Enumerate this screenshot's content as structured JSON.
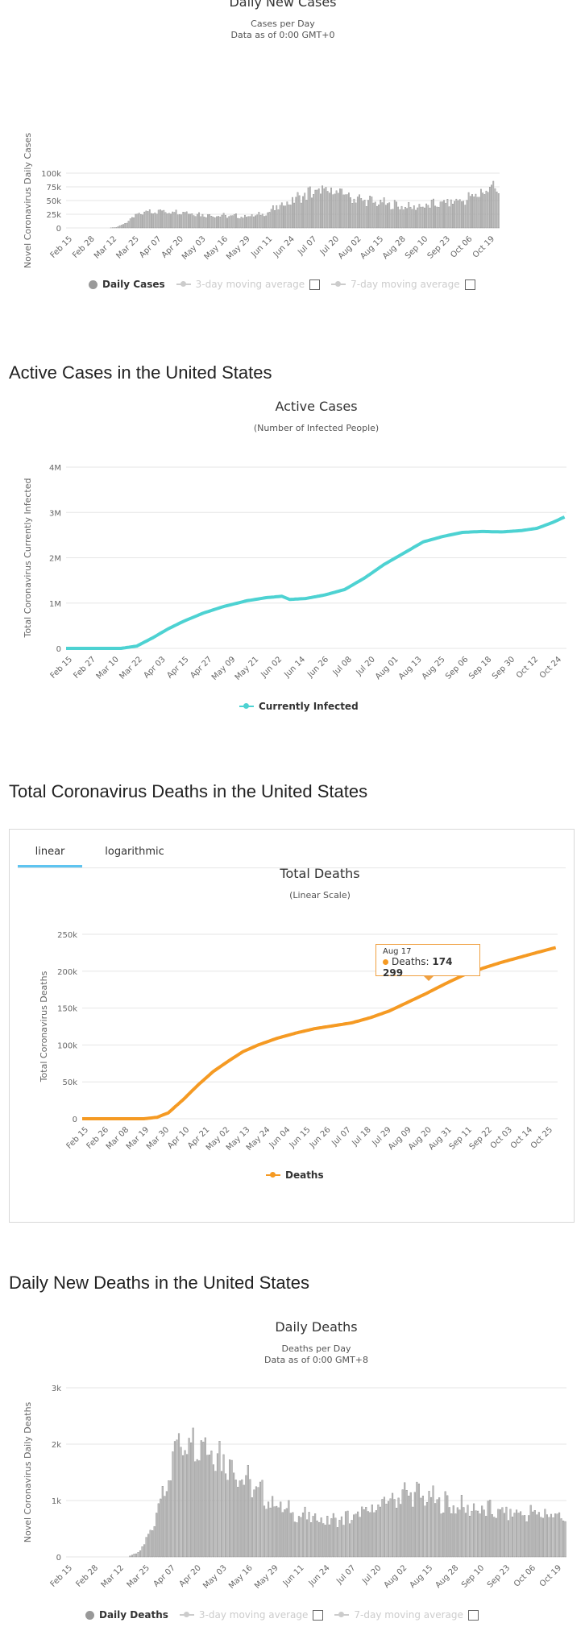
{
  "sections": {
    "active_title": "Active Cases in the United States",
    "deaths_title": "Total Coronavirus Deaths in the United States",
    "daily_deaths_title": "Daily New Deaths in the United States"
  },
  "tabs": [
    {
      "label": "linear",
      "active": true
    },
    {
      "label": "logarithmic",
      "active": false
    }
  ],
  "legends": {
    "daily_cases": {
      "primary": "Daily Cases",
      "ma3": "3-day moving average",
      "ma7": "7-day moving average"
    },
    "active": {
      "primary": "Currently Infected"
    },
    "deaths": {
      "primary": "Deaths"
    },
    "daily_deaths": {
      "primary": "Daily Deaths",
      "ma3": "3-day moving average",
      "ma7": "7-day moving average"
    }
  },
  "tooltip": {
    "date": "Aug 17",
    "label": "Deaths:",
    "value": "174 299"
  },
  "colors": {
    "bars": "#bdbdbd",
    "bar_edge": "#8a8a8a",
    "active": "#4dd2d2",
    "deaths": "#f59a23",
    "grid": "#e6e6e6",
    "legend_inactive": "#cccccc"
  },
  "chart_data": [
    {
      "id": "daily_cases",
      "type": "bar",
      "title": "Daily New Cases",
      "subtitle": "Cases per Day",
      "subtitle2": "Data as of 0:00 GMT+0",
      "ylabel": "Novel Coronavirus Daily Cases",
      "ylim": [
        0,
        100000
      ],
      "yticks": [
        0,
        25000,
        50000,
        75000,
        100000
      ],
      "ytick_labels": [
        "0",
        "25k",
        "50k",
        "75k",
        "100k"
      ],
      "xtick_labels": [
        "Feb 15",
        "Feb 28",
        "Mar 12",
        "Mar 25",
        "Apr 07",
        "Apr 20",
        "May 03",
        "May 16",
        "May 29",
        "Jun 11",
        "Jun 24",
        "Jul 07",
        "Jul 20",
        "Aug 02",
        "Aug 15",
        "Aug 28",
        "Sep 10",
        "Sep 23",
        "Oct 06",
        "Oct 19"
      ],
      "knots": [
        [
          0,
          0
        ],
        [
          24,
          0
        ],
        [
          28,
          1000
        ],
        [
          33,
          8000
        ],
        [
          38,
          20000
        ],
        [
          43,
          28000
        ],
        [
          48,
          32000
        ],
        [
          55,
          30000
        ],
        [
          62,
          31000
        ],
        [
          70,
          28000
        ],
        [
          78,
          24000
        ],
        [
          90,
          22000
        ],
        [
          100,
          21000
        ],
        [
          110,
          24000
        ],
        [
          118,
          35000
        ],
        [
          126,
          48000
        ],
        [
          133,
          58000
        ],
        [
          140,
          66000
        ],
        [
          148,
          68000
        ],
        [
          155,
          66000
        ],
        [
          162,
          56000
        ],
        [
          170,
          50000
        ],
        [
          178,
          46000
        ],
        [
          186,
          42000
        ],
        [
          194,
          38000
        ],
        [
          202,
          40000
        ],
        [
          210,
          44000
        ],
        [
          218,
          48000
        ],
        [
          226,
          52000
        ],
        [
          232,
          60000
        ],
        [
          238,
          68000
        ],
        [
          242,
          80000
        ],
        [
          245,
          70000
        ]
      ]
    },
    {
      "id": "active",
      "type": "line",
      "title": "Active Cases",
      "subtitle": "(Number of Infected People)",
      "ylabel": "Total Coronavirus Currently Infected",
      "series_name": "Currently Infected",
      "ylim": [
        0,
        4000000
      ],
      "yticks": [
        0,
        1000000,
        2000000,
        3000000,
        4000000
      ],
      "ytick_labels": [
        "0",
        "1M",
        "2M",
        "3M",
        "4M"
      ],
      "xtick_labels": [
        "Feb 15",
        "Feb 27",
        "Mar 10",
        "Mar 22",
        "Apr 03",
        "Apr 15",
        "Apr 27",
        "May 09",
        "May 21",
        "Jun 02",
        "Jun 14",
        "Jun 26",
        "Jul 08",
        "Jul 20",
        "Aug 01",
        "Aug 13",
        "Aug 25",
        "Sep 06",
        "Sep 18",
        "Sep 30",
        "Oct 12",
        "Oct 24"
      ],
      "knots": [
        [
          0,
          0
        ],
        [
          28,
          0
        ],
        [
          36,
          50000
        ],
        [
          44,
          230000
        ],
        [
          52,
          430000
        ],
        [
          60,
          600000
        ],
        [
          70,
          780000
        ],
        [
          80,
          920000
        ],
        [
          92,
          1050000
        ],
        [
          102,
          1120000
        ],
        [
          110,
          1150000
        ],
        [
          114,
          1080000
        ],
        [
          122,
          1100000
        ],
        [
          132,
          1180000
        ],
        [
          142,
          1300000
        ],
        [
          152,
          1550000
        ],
        [
          162,
          1850000
        ],
        [
          172,
          2100000
        ],
        [
          182,
          2350000
        ],
        [
          192,
          2470000
        ],
        [
          202,
          2560000
        ],
        [
          212,
          2580000
        ],
        [
          222,
          2570000
        ],
        [
          232,
          2600000
        ],
        [
          240,
          2650000
        ],
        [
          248,
          2780000
        ],
        [
          254,
          2900000
        ]
      ]
    },
    {
      "id": "deaths",
      "type": "line",
      "title": "Total Deaths",
      "subtitle": "(Linear Scale)",
      "ylabel": "Total Coronavirus Deaths",
      "series_name": "Deaths",
      "ylim": [
        0,
        250000
      ],
      "yticks": [
        0,
        50000,
        100000,
        150000,
        200000,
        250000
      ],
      "ytick_labels": [
        "0",
        "50k",
        "100k",
        "150k",
        "200k",
        "250k"
      ],
      "xtick_labels": [
        "Feb 15",
        "Feb 26",
        "Mar 08",
        "Mar 19",
        "Mar 30",
        "Apr 10",
        "Apr 21",
        "May 02",
        "May 13",
        "May 24",
        "Jun 04",
        "Jun 15",
        "Jun 26",
        "Jul 07",
        "Jul 18",
        "Jul 29",
        "Aug 09",
        "Aug 20",
        "Aug 31",
        "Sep 11",
        "Sep 22",
        "Oct 03",
        "Oct 14",
        "Oct 25"
      ],
      "knots": [
        [
          0,
          0
        ],
        [
          33,
          0
        ],
        [
          40,
          2000
        ],
        [
          46,
          8000
        ],
        [
          54,
          26000
        ],
        [
          62,
          46000
        ],
        [
          70,
          64000
        ],
        [
          78,
          78000
        ],
        [
          86,
          91000
        ],
        [
          94,
          100000
        ],
        [
          104,
          109000
        ],
        [
          114,
          116000
        ],
        [
          124,
          122000
        ],
        [
          134,
          126000
        ],
        [
          144,
          130000
        ],
        [
          154,
          137000
        ],
        [
          164,
          146000
        ],
        [
          174,
          158000
        ],
        [
          184,
          170000
        ],
        [
          194,
          183000
        ],
        [
          204,
          195000
        ],
        [
          214,
          204000
        ],
        [
          224,
          212000
        ],
        [
          234,
          219000
        ],
        [
          244,
          226000
        ],
        [
          253,
          232000
        ]
      ]
    },
    {
      "id": "daily_deaths",
      "type": "bar",
      "title": "Daily Deaths",
      "subtitle": "Deaths per Day",
      "subtitle2": "Data as of 0:00 GMT+8",
      "ylabel": "Novel Coronavirus Daily Deaths",
      "ylim": [
        0,
        3000
      ],
      "yticks": [
        0,
        1000,
        2000,
        3000
      ],
      "ytick_labels": [
        "0",
        "1k",
        "2k",
        "3k"
      ],
      "xtick_labels": [
        "Feb 15",
        "Feb 28",
        "Mar 12",
        "Mar 25",
        "Apr 07",
        "Apr 20",
        "May 03",
        "May 16",
        "May 29",
        "Jun 11",
        "Jun 24",
        "Jul 07",
        "Jul 20",
        "Aug 02",
        "Aug 15",
        "Aug 28",
        "Sep 10",
        "Sep 23",
        "Oct 06",
        "Oct 19"
      ],
      "knots": [
        [
          0,
          0
        ],
        [
          30,
          0
        ],
        [
          36,
          100
        ],
        [
          42,
          500
        ],
        [
          48,
          1300
        ],
        [
          54,
          2000
        ],
        [
          60,
          2200
        ],
        [
          66,
          2100
        ],
        [
          74,
          1900
        ],
        [
          82,
          1600
        ],
        [
          90,
          1300
        ],
        [
          100,
          1000
        ],
        [
          110,
          800
        ],
        [
          120,
          700
        ],
        [
          130,
          650
        ],
        [
          140,
          700
        ],
        [
          150,
          850
        ],
        [
          158,
          1000
        ],
        [
          166,
          1150
        ],
        [
          174,
          1100
        ],
        [
          182,
          1000
        ],
        [
          192,
          900
        ],
        [
          202,
          850
        ],
        [
          212,
          800
        ],
        [
          222,
          780
        ],
        [
          232,
          770
        ],
        [
          240,
          760
        ],
        [
          245,
          700
        ]
      ]
    }
  ]
}
